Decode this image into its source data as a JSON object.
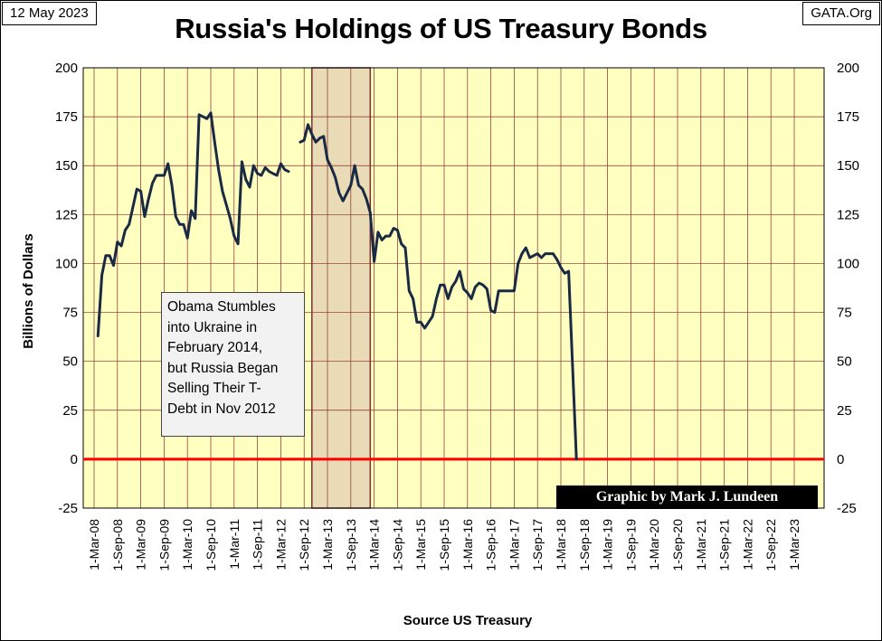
{
  "header": {
    "date": "12 May 2023",
    "site": "GATA.Org",
    "title": "Russia's Holdings of US Treasury Bonds"
  },
  "annotation": {
    "lines": [
      "Obama Stumbles",
      "into Ukraine in",
      "February 2014,",
      "but Russia Began",
      "Selling Their T-",
      "Debt in Nov 2012"
    ]
  },
  "credit": "Graphic by Mark J. Lundeen",
  "colors": {
    "plot_background": "#ffffc0",
    "grid": "#8b2a2a",
    "series_line": "#1a2a44",
    "zero_line": "#ff0000",
    "shaded_region": "#e8dbb5"
  },
  "chart_data": {
    "type": "line",
    "title": "Russia's Holdings of US Treasury Bonds",
    "xlabel": "Source US Treasury",
    "ylabel": "Billions of Dollars",
    "ylim": [
      -25,
      200
    ],
    "y_ticks": [
      -25,
      0,
      25,
      50,
      75,
      100,
      125,
      150,
      175,
      200
    ],
    "y_axis_right_mirror": true,
    "x_ticks": [
      "1-Mar-08",
      "1-Sep-08",
      "1-Mar-09",
      "1-Sep-09",
      "1-Mar-10",
      "1-Sep-10",
      "1-Mar-11",
      "1-Sep-11",
      "1-Mar-12",
      "1-Sep-12",
      "1-Mar-13",
      "1-Sep-13",
      "1-Mar-14",
      "1-Sep-14",
      "1-Mar-15",
      "1-Sep-15",
      "1-Mar-16",
      "1-Sep-16",
      "1-Mar-17",
      "1-Sep-17",
      "1-Mar-18",
      "1-Sep-18",
      "1-Mar-19",
      "1-Sep-19",
      "1-Mar-20",
      "1-Sep-20",
      "1-Mar-21",
      "1-Sep-21",
      "1-Mar-22",
      "1-Sep-22",
      "1-Mar-23"
    ],
    "shaded_period": [
      "2012-11",
      "2014-02"
    ],
    "grid": true,
    "reference_line": 0,
    "series": [
      {
        "segments": [
          {
            "x": [
              "2008-04",
              "2008-05",
              "2008-06",
              "2008-07",
              "2008-08",
              "2008-09",
              "2008-10",
              "2008-11",
              "2008-12",
              "2009-01",
              "2009-02",
              "2009-03",
              "2009-04",
              "2009-05",
              "2009-06",
              "2009-07",
              "2009-08",
              "2009-09",
              "2009-10",
              "2009-11",
              "2009-12",
              "2010-01",
              "2010-02",
              "2010-03",
              "2010-04",
              "2010-05",
              "2010-06",
              "2010-07",
              "2010-08",
              "2010-09",
              "2010-10",
              "2010-11",
              "2010-12",
              "2011-01",
              "2011-02",
              "2011-03",
              "2011-04",
              "2011-05",
              "2011-06",
              "2011-07",
              "2011-08",
              "2011-09",
              "2011-10",
              "2011-11",
              "2011-12",
              "2012-01",
              "2012-02",
              "2012-03",
              "2012-04",
              "2012-05"
            ],
            "y": [
              63,
              94,
              104,
              104,
              99,
              111,
              109,
              117,
              120,
              129,
              138,
              137,
              124,
              133,
              141,
              145,
              145,
              145,
              151,
              140,
              124,
              120,
              120,
              113,
              127,
              123,
              176,
              175,
              174,
              177,
              162,
              148,
              137,
              130,
              123,
              114,
              110,
              152,
              143,
              139,
              150,
              146,
              145,
              149,
              147,
              146,
              145,
              151,
              148,
              147
            ]
          },
          {
            "x": [
              "2012-08",
              "2012-09",
              "2012-10",
              "2012-11",
              "2012-12",
              "2013-01",
              "2013-02",
              "2013-03",
              "2013-04",
              "2013-05",
              "2013-06",
              "2013-07",
              "2013-08",
              "2013-09",
              "2013-10",
              "2013-11",
              "2013-12",
              "2014-01",
              "2014-02",
              "2014-03",
              "2014-04",
              "2014-05",
              "2014-06",
              "2014-07",
              "2014-08",
              "2014-09",
              "2014-10",
              "2014-11",
              "2014-12",
              "2015-01",
              "2015-02",
              "2015-03",
              "2015-04",
              "2015-05",
              "2015-06",
              "2015-07",
              "2015-08",
              "2015-09",
              "2015-10",
              "2015-11",
              "2015-12",
              "2016-01",
              "2016-02",
              "2016-03",
              "2016-04",
              "2016-05",
              "2016-06",
              "2016-07",
              "2016-08",
              "2016-09",
              "2016-10",
              "2016-11",
              "2016-12",
              "2017-01",
              "2017-02",
              "2017-03",
              "2017-04",
              "2017-05",
              "2017-06",
              "2017-07",
              "2017-08",
              "2017-09",
              "2017-10",
              "2017-11",
              "2017-12",
              "2018-01",
              "2018-02",
              "2018-03",
              "2018-04",
              "2018-05",
              "2018-06"
            ],
            "y": [
              162,
              163,
              171,
              166,
              162,
              164,
              165,
              153,
              149,
              144,
              136,
              132,
              136,
              140,
              150,
              140,
              138,
              133,
              126,
              101,
              116,
              112,
              114,
              114,
              118,
              117,
              110,
              108,
              86,
              82,
              70,
              70,
              67,
              70,
              73,
              82,
              89,
              89,
              82,
              88,
              91,
              96,
              87,
              85,
              82,
              88,
              90,
              89,
              87,
              76,
              75,
              86,
              86,
              86,
              86,
              86,
              100,
              105,
              108,
              103,
              104,
              105,
              103,
              105,
              105,
              105,
              102,
              98,
              95,
              96,
              48
            ]
          },
          {
            "x": [
              "2018-06",
              "2018-07"
            ],
            "y": [
              48,
              0
            ]
          }
        ]
      }
    ]
  }
}
